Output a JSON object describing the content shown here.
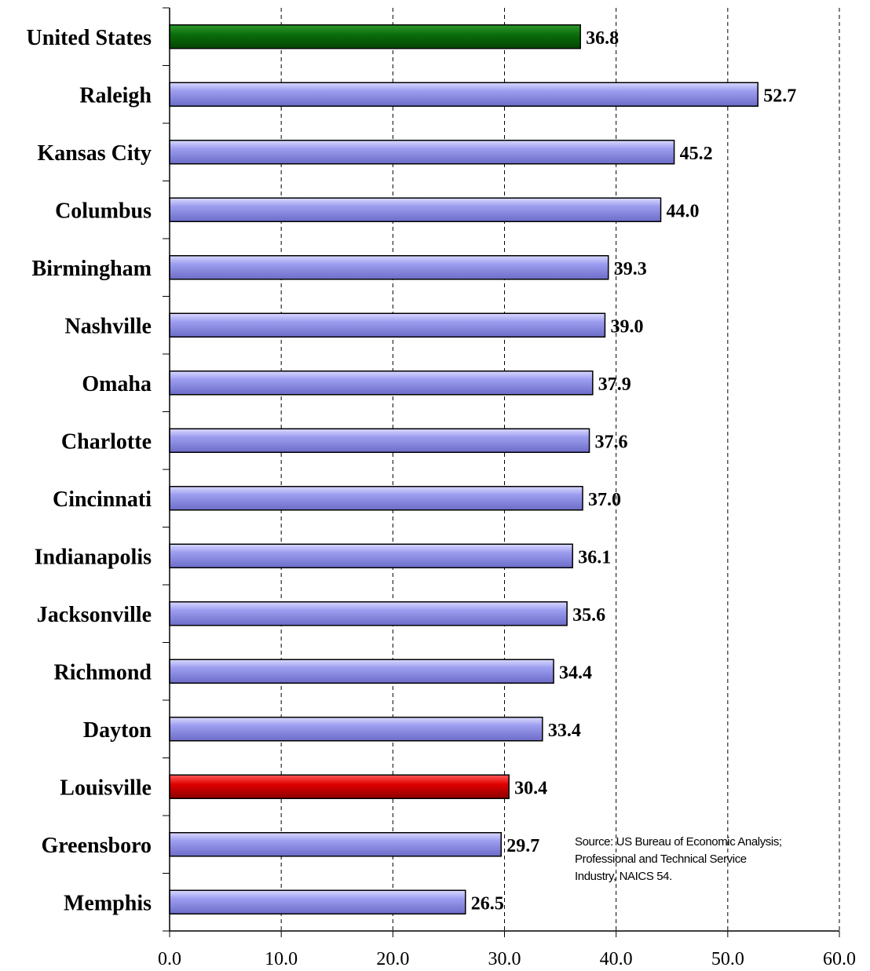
{
  "chart_data": {
    "type": "bar",
    "orientation": "horizontal",
    "categories": [
      "United States",
      "Raleigh",
      "Kansas City",
      "Columbus",
      "Birmingham",
      "Nashville",
      "Omaha",
      "Charlotte",
      "Cincinnati",
      "Indianapolis",
      "Jacksonville",
      "Richmond",
      "Dayton",
      "Louisville",
      "Greensboro",
      "Memphis"
    ],
    "values": [
      36.8,
      52.7,
      45.2,
      44.0,
      39.3,
      39.0,
      37.9,
      37.6,
      37.0,
      36.1,
      35.6,
      34.4,
      33.4,
      30.4,
      29.7,
      26.5
    ],
    "value_labels": [
      "36.8",
      "52.7",
      "45.2",
      "44.0",
      "39.3",
      "39.0",
      "37.9",
      "37.6",
      "37.0",
      "36.1",
      "35.6",
      "34.4",
      "33.4",
      "30.4",
      "29.7",
      "26.5"
    ],
    "bar_colors": [
      "#0a6b0a",
      "#8f8fe8",
      "#8f8fe8",
      "#8f8fe8",
      "#8f8fe8",
      "#8f8fe8",
      "#8f8fe8",
      "#8f8fe8",
      "#8f8fe8",
      "#8f8fe8",
      "#8f8fe8",
      "#8f8fe8",
      "#8f8fe8",
      "#dd0000",
      "#8f8fe8",
      "#8f8fe8"
    ],
    "xlim": [
      0,
      60
    ],
    "x_ticks": [
      0,
      10,
      20,
      30,
      40,
      50,
      60
    ],
    "x_tick_labels": [
      "0.0",
      "10.0",
      "20.0",
      "30.0",
      "40.0",
      "50.0",
      "60.0"
    ],
    "grid": "vertical dashed",
    "title": "",
    "xlabel": "",
    "ylabel": ""
  },
  "source_note": {
    "line1": "Source: US Bureau of Economic Analysis;",
    "line2": "Professional and Technical Service",
    "line3": "Industry, NAICS 54."
  }
}
